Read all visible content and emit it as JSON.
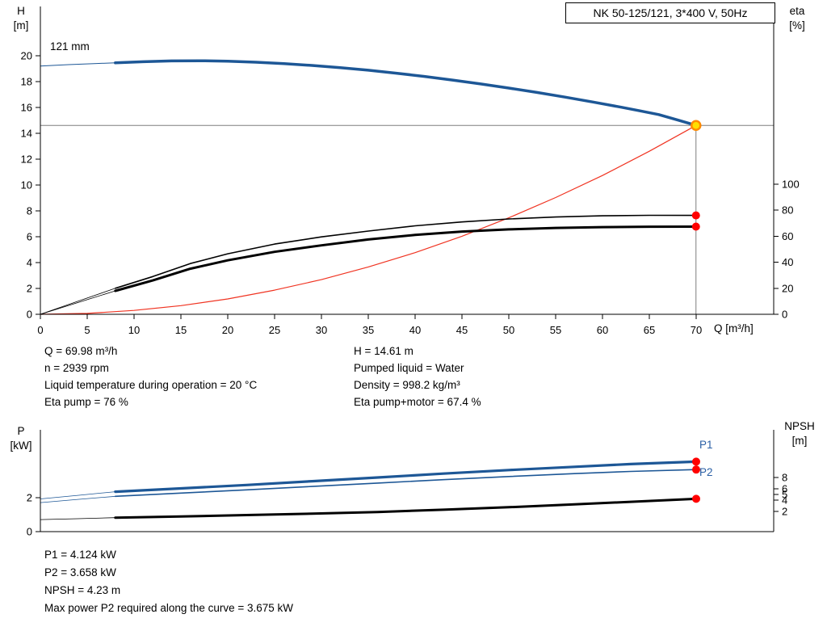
{
  "colors": {
    "blue": "#1d5796",
    "red": "#f03422",
    "black": "#000000",
    "gray": "#7f7f7f",
    "duty_fill": "#ffdf00",
    "duty_stroke": "#ff8a00",
    "dot_red": "#ff0000",
    "label_blue": "#2a5fa5"
  },
  "chart_data": [
    {
      "type": "line",
      "title": "NK 50-125/121, 3*400 V, 50Hz",
      "impeller_label": "121 mm",
      "x": {
        "label": "Q [m³/h]",
        "range": [
          0,
          70
        ],
        "ticks": [
          0,
          5,
          10,
          15,
          20,
          25,
          30,
          35,
          40,
          45,
          50,
          55,
          60,
          65,
          70
        ]
      },
      "y_left": {
        "label": "H",
        "unit": "[m]",
        "range": [
          0,
          20
        ],
        "ticks": [
          0,
          2,
          4,
          6,
          8,
          10,
          12,
          14,
          16,
          18,
          20
        ]
      },
      "y_right": {
        "label": "eta",
        "unit": "[%]",
        "range": [
          0,
          100
        ],
        "ticks": [
          0,
          20,
          40,
          60,
          80,
          100
        ]
      },
      "duty_point": {
        "q": 69.98,
        "h": 14.61
      },
      "series": [
        {
          "name": "qh-curve-leadin",
          "axis": "left",
          "color": "blue",
          "width": 1,
          "points": [
            [
              0,
              19.2
            ],
            [
              3,
              19.31
            ],
            [
              6,
              19.4
            ],
            [
              8,
              19.45
            ]
          ]
        },
        {
          "name": "qh-curve",
          "axis": "left",
          "color": "blue",
          "width": 3.5,
          "points": [
            [
              8,
              19.45
            ],
            [
              11,
              19.54
            ],
            [
              14,
              19.6
            ],
            [
              17,
              19.61
            ],
            [
              20,
              19.58
            ],
            [
              23,
              19.5
            ],
            [
              26,
              19.39
            ],
            [
              29,
              19.25
            ],
            [
              32,
              19.08
            ],
            [
              35,
              18.88
            ],
            [
              38,
              18.65
            ],
            [
              41,
              18.4
            ],
            [
              44,
              18.12
            ],
            [
              47,
              17.82
            ],
            [
              50,
              17.5
            ],
            [
              53,
              17.16
            ],
            [
              56,
              16.8
            ],
            [
              59,
              16.42
            ],
            [
              62,
              16.02
            ],
            [
              64,
              15.74
            ],
            [
              66,
              15.45
            ],
            [
              68,
              15.04
            ],
            [
              70,
              14.61
            ]
          ]
        },
        {
          "name": "system-curve",
          "axis": "left",
          "color": "red",
          "width": 1.2,
          "points": [
            [
              0,
              0
            ],
            [
              5,
              0.07
            ],
            [
              10,
              0.3
            ],
            [
              15,
              0.67
            ],
            [
              20,
              1.19
            ],
            [
              25,
              1.87
            ],
            [
              30,
              2.68
            ],
            [
              35,
              3.66
            ],
            [
              40,
              4.77
            ],
            [
              45,
              6.04
            ],
            [
              50,
              7.46
            ],
            [
              55,
              9.03
            ],
            [
              60,
              10.74
            ],
            [
              65,
              12.61
            ],
            [
              70,
              14.61
            ]
          ]
        },
        {
          "name": "eta-pump-leadin",
          "axis": "right",
          "color": "black",
          "width": 0.8,
          "points": [
            [
              0,
              0
            ],
            [
              4,
              10
            ],
            [
              8,
              20
            ]
          ]
        },
        {
          "name": "eta-pump-curve",
          "axis": "right",
          "color": "black",
          "width": 1.6,
          "points": [
            [
              8,
              20
            ],
            [
              12,
              29
            ],
            [
              16,
              39
            ],
            [
              20,
              46.5
            ],
            [
              25,
              54
            ],
            [
              30,
              59.5
            ],
            [
              35,
              64
            ],
            [
              40,
              68
            ],
            [
              45,
              71
            ],
            [
              50,
              73.3
            ],
            [
              55,
              74.8
            ],
            [
              60,
              75.7
            ],
            [
              65,
              76.1
            ],
            [
              70,
              76
            ]
          ]
        },
        {
          "name": "eta-pump-motor-leadin",
          "axis": "right",
          "color": "black",
          "width": 0.8,
          "points": [
            [
              0,
              0
            ],
            [
              4,
              9
            ],
            [
              8,
              18
            ]
          ]
        },
        {
          "name": "eta-pump-motor-curve",
          "axis": "right",
          "color": "black",
          "width": 3,
          "points": [
            [
              8,
              18
            ],
            [
              12,
              26
            ],
            [
              16,
              35
            ],
            [
              20,
              41.5
            ],
            [
              25,
              48
            ],
            [
              30,
              53
            ],
            [
              35,
              57.5
            ],
            [
              40,
              61
            ],
            [
              45,
              63.6
            ],
            [
              50,
              65.3
            ],
            [
              55,
              66.4
            ],
            [
              60,
              67
            ],
            [
              65,
              67.3
            ],
            [
              70,
              67.4
            ]
          ]
        }
      ],
      "markers": [
        {
          "name": "duty-point",
          "axis": "left",
          "q": 69.98,
          "v": 14.61,
          "type": "duty"
        },
        {
          "name": "eta-pump-point",
          "axis": "right",
          "q": 69.98,
          "v": 76,
          "type": "dot"
        },
        {
          "name": "eta-pump-motor-point",
          "axis": "right",
          "q": 69.98,
          "v": 67.4,
          "type": "dot"
        }
      ]
    },
    {
      "type": "line",
      "x": {
        "range": [
          0,
          70
        ],
        "ticks": []
      },
      "y_left": {
        "label": "P",
        "unit": "[kW]",
        "range": [
          0,
          6
        ],
        "ticks": [
          0,
          2
        ]
      },
      "y_right": {
        "label": "NPSH",
        "unit": "[m]",
        "range": [
          0,
          16
        ],
        "ticks": [
          8,
          6,
          5,
          4,
          2
        ]
      },
      "series": [
        {
          "name": "p1-curve-leadin",
          "axis": "left",
          "color": "blue",
          "width": 0.8,
          "points": [
            [
              0,
              1.93
            ],
            [
              4,
              2.14
            ],
            [
              8,
              2.35
            ]
          ]
        },
        {
          "name": "p1-curve",
          "axis": "left",
          "color": "blue",
          "width": 3.2,
          "points": [
            [
              8,
              2.35
            ],
            [
              15,
              2.55
            ],
            [
              22,
              2.75
            ],
            [
              29,
              2.97
            ],
            [
              36,
              3.19
            ],
            [
              43,
              3.42
            ],
            [
              50,
              3.63
            ],
            [
              57,
              3.82
            ],
            [
              63,
              3.98
            ],
            [
              70,
              4.124
            ]
          ]
        },
        {
          "name": "p2-curve-leadin",
          "axis": "left",
          "color": "blue",
          "width": 0.8,
          "points": [
            [
              0,
              1.71
            ],
            [
              4,
              1.9
            ],
            [
              8,
              2.08
            ]
          ]
        },
        {
          "name": "p2-curve",
          "axis": "left",
          "color": "blue",
          "width": 1.6,
          "points": [
            [
              8,
              2.08
            ],
            [
              15,
              2.27
            ],
            [
              22,
              2.46
            ],
            [
              29,
              2.66
            ],
            [
              36,
              2.86
            ],
            [
              43,
              3.06
            ],
            [
              50,
              3.25
            ],
            [
              57,
              3.42
            ],
            [
              63,
              3.55
            ],
            [
              70,
              3.658
            ]
          ]
        },
        {
          "name": "npsh-curve-leadin",
          "axis": "right",
          "color": "black",
          "width": 0.8,
          "points": [
            [
              0,
              0.55
            ],
            [
              4,
              0.72
            ],
            [
              8,
              0.9
            ]
          ]
        },
        {
          "name": "npsh-curve",
          "axis": "right",
          "color": "black",
          "width": 3,
          "points": [
            [
              8,
              0.9
            ],
            [
              15,
              1.1
            ],
            [
              22,
              1.35
            ],
            [
              29,
              1.6
            ],
            [
              36,
              1.9
            ],
            [
              43,
              2.3
            ],
            [
              50,
              2.75
            ],
            [
              57,
              3.25
            ],
            [
              63,
              3.7
            ],
            [
              70,
              4.23
            ]
          ]
        }
      ],
      "markers": [
        {
          "name": "p1-point",
          "label": "P1",
          "axis": "left",
          "q": 70,
          "v": 4.124,
          "type": "dot"
        },
        {
          "name": "p2-point",
          "label": "P2",
          "axis": "left",
          "q": 70,
          "v": 3.658,
          "type": "dot"
        },
        {
          "name": "npsh-point",
          "axis": "right",
          "q": 70,
          "v": 4.23,
          "type": "dot"
        }
      ]
    }
  ],
  "info_block": {
    "left": [
      "Q = 69.98 m³/h",
      "n = 2939 rpm",
      "Liquid temperature during operation = 20 °C",
      "Eta pump = 76 %"
    ],
    "right": [
      "H = 14.61 m",
      "Pumped liquid = Water",
      "Density = 998.2 kg/m³",
      "Eta pump+motor = 67.4 %"
    ]
  },
  "results_block": [
    "P1 = 4.124 kW",
    "P2 = 3.658 kW",
    "NPSH = 4.23 m",
    "Max power P2 required along the curve = 3.675 kW"
  ]
}
